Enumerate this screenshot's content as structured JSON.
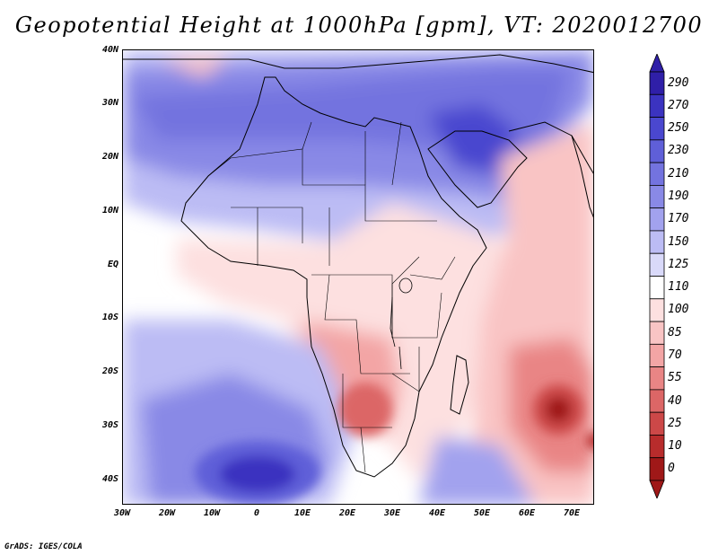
{
  "title": "Geopotential Height at 1000hPa [gpm], VT: 2020012700",
  "credit": "GrADS: IGES/COLA",
  "latitude_labels": [
    "40N",
    "30N",
    "20N",
    "10N",
    "EQ",
    "10S",
    "20S",
    "30S",
    "40S"
  ],
  "longitude_labels": [
    "30W",
    "20W",
    "10W",
    "0",
    "10E",
    "20E",
    "30E",
    "40E",
    "50E",
    "60E",
    "70E"
  ],
  "colorbar": {
    "levels": [
      "290",
      "270",
      "250",
      "230",
      "210",
      "190",
      "170",
      "150",
      "125",
      "110",
      "100",
      "85",
      "70",
      "55",
      "40",
      "25",
      "10",
      "0"
    ],
    "colors": [
      "#2f1fa8",
      "#3b33c0",
      "#4a47cf",
      "#5f5fd8",
      "#7373df",
      "#8989e6",
      "#a2a2ee",
      "#bcbcf4",
      "#d9d9f9",
      "#ffffff",
      "#fde0e0",
      "#f9c4c4",
      "#f3a5a5",
      "#e98585",
      "#dc6666",
      "#cc4848",
      "#b82c2c",
      "#9f1818"
    ]
  },
  "map_data": {
    "variable": "Geopotential Height at 1000hPa",
    "units": "gpm",
    "valid_time": "2020012700",
    "lon_range": [
      -30,
      75
    ],
    "lat_range": [
      -40,
      45
    ]
  }
}
